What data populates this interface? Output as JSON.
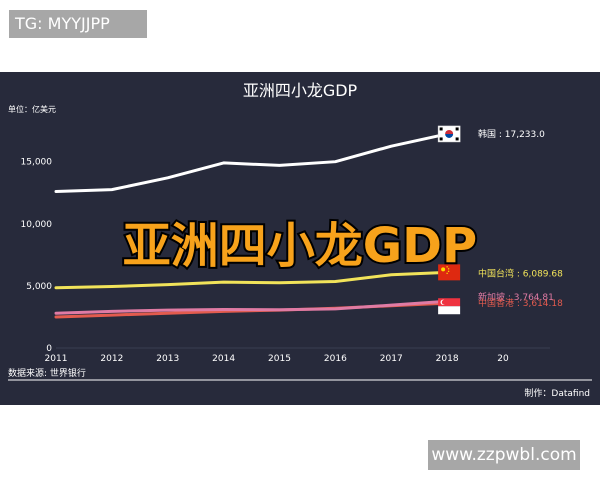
{
  "watermark_top": "TG: MYYJJPP",
  "watermark_bottom": "www.zzpwbl.com",
  "chart_data": {
    "type": "line",
    "title": "亚洲四小龙GDP",
    "overlay_title": "亚洲四小龙GDP",
    "unit": "单位：亿美元",
    "source": "数据来源: 世界银行",
    "credit": "制作：Datafind",
    "x": [
      2011,
      2012,
      2013,
      2014,
      2015,
      2016,
      2017,
      2018
    ],
    "x_tick_labels": [
      "2011",
      "2012",
      "2013",
      "2014",
      "2015",
      "2016",
      "2017",
      "2018",
      "20"
    ],
    "xlim": [
      2011,
      2019
    ],
    "ylim": [
      0,
      19000
    ],
    "y_ticks": [
      0,
      5000,
      10000,
      15000
    ],
    "y_tick_labels": [
      "0",
      "5,000",
      "10,000",
      "15,000"
    ],
    "grid": false,
    "series": [
      {
        "name": "韩国",
        "label": "韩国 : 17,233.0",
        "color": "#ffffff",
        "flag": "south-korea-flag",
        "values": [
          12600,
          12750,
          13700,
          14900,
          14700,
          15000,
          16250,
          17233
        ]
      },
      {
        "name": "中国台湾",
        "label": "中国台湾 : 6,089.68",
        "color": "#f1e35a",
        "flag": "china-flag",
        "values": [
          4850,
          4950,
          5100,
          5300,
          5250,
          5350,
          5900,
          6090
        ]
      },
      {
        "name": "新加坡",
        "label": "新加坡 : 3,764.81",
        "color": "#e07ba4",
        "flag": "singapore-flag",
        "values": [
          2800,
          2950,
          3050,
          3100,
          3080,
          3150,
          3450,
          3765
        ]
      },
      {
        "name": "中国香港",
        "label": "中国香港 : 3,614.18",
        "color": "#e35b4e",
        "flag": "",
        "values": [
          2500,
          2650,
          2800,
          2950,
          3050,
          3200,
          3400,
          3614
        ]
      }
    ]
  }
}
